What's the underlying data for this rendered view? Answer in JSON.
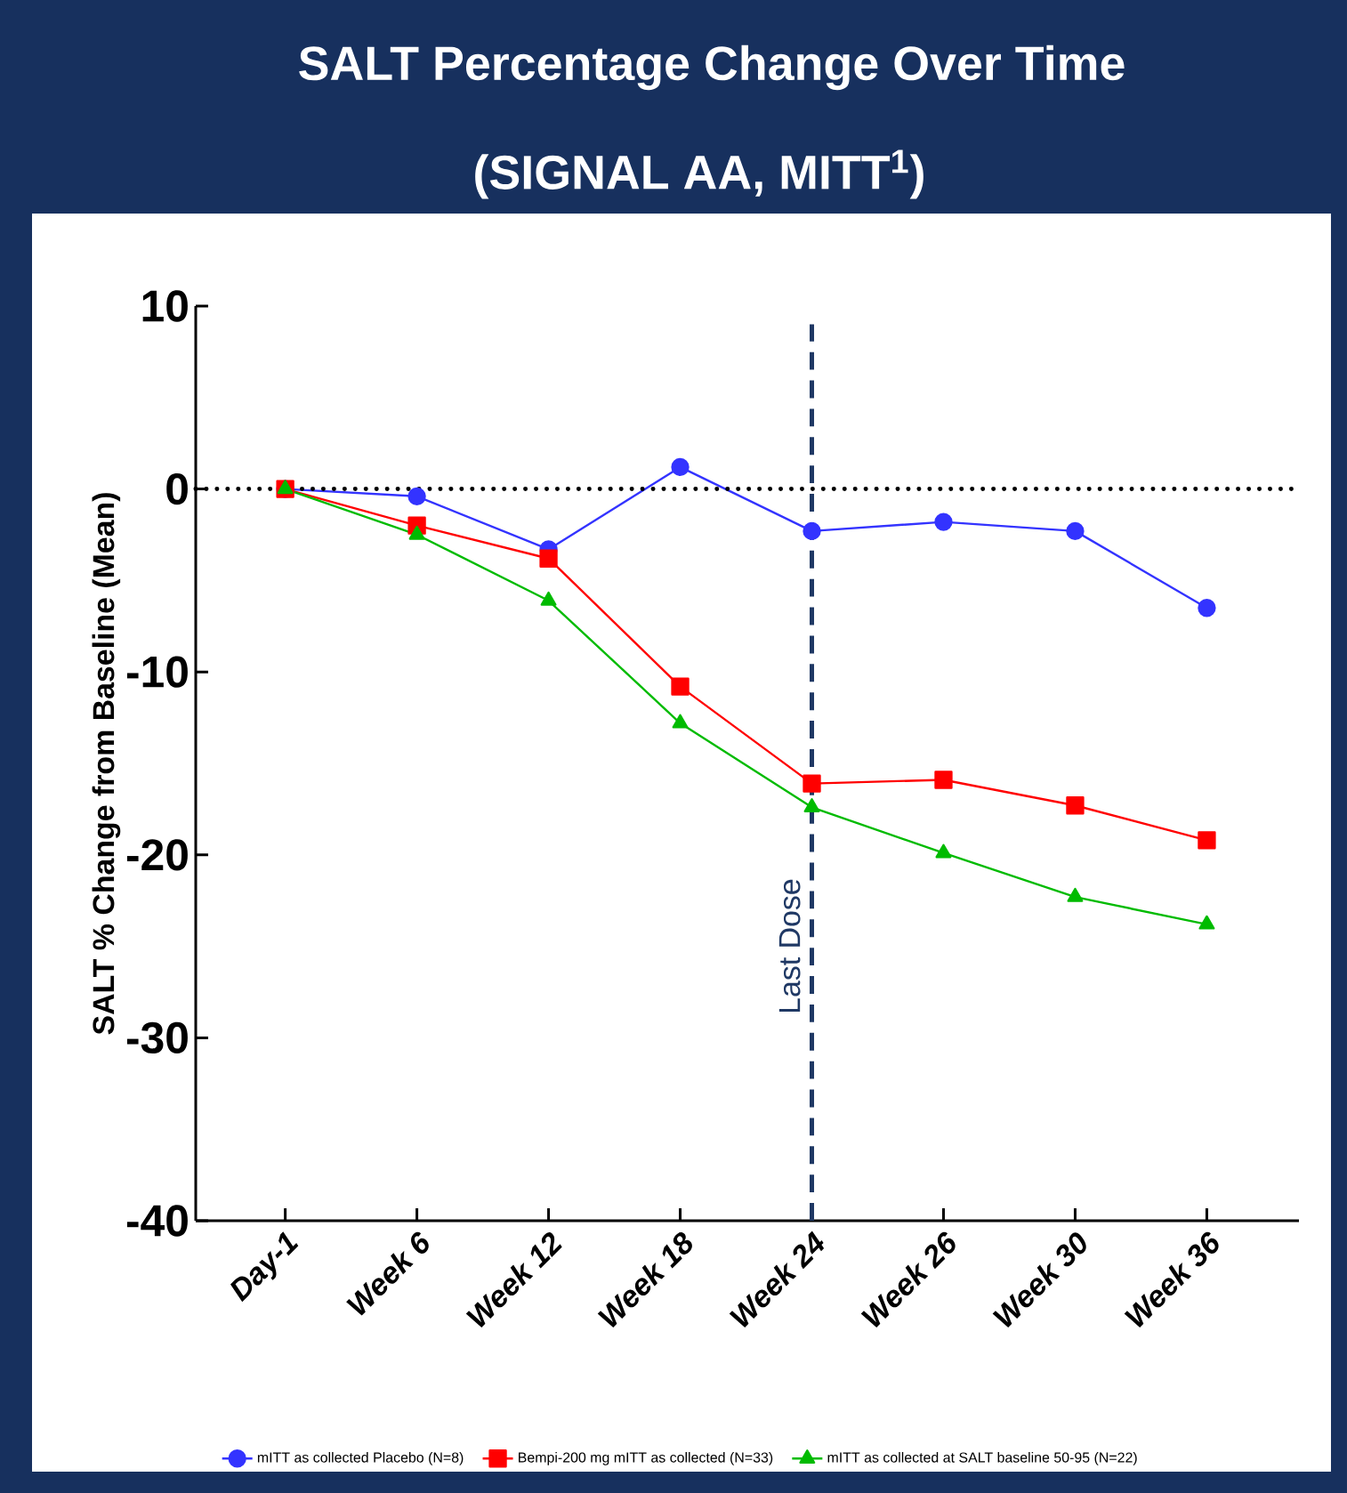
{
  "chart_data": {
    "type": "line",
    "title": "SALT Percentage Change Over Time",
    "subtitle": "(SIGNAL AA, MITT$^{1}$)",
    "ylabel": "SALT % Change from Baseline (Mean)",
    "categories": [
      "Day-1",
      "Week 6",
      "Week 12",
      "Week 18",
      "Week 24",
      "Week 26",
      "Week 30",
      "Week 36"
    ],
    "series": [
      {
        "name": "mITT as collected Placebo  (N=8)",
        "color": "#3333ff",
        "marker": "circle",
        "values": [
          0,
          -0.4,
          -3.3,
          1.2,
          -2.3,
          -1.8,
          -2.3,
          -6.5
        ]
      },
      {
        "name": "Bempi-200 mg mITT as collected (N=33)",
        "color": "#ff0000",
        "marker": "square",
        "values": [
          0,
          -2.0,
          -3.8,
          -10.8,
          -16.1,
          -15.9,
          -17.3,
          -19.2
        ]
      },
      {
        "name": "mITT as collected at SALT baseline 50-95  (N=22)",
        "color": "#00bb00",
        "marker": "triangle",
        "values": [
          0,
          -2.5,
          -6.1,
          -12.8,
          -17.4,
          -19.9,
          -22.3,
          -23.8
        ]
      }
    ],
    "ylim": [
      -40,
      10
    ],
    "yticks": [
      -40,
      -30,
      -20,
      -10,
      0,
      10
    ],
    "ref_lines": [
      {
        "axis": "y",
        "value": 0,
        "color": "#000000",
        "line_style": "dotted"
      },
      {
        "axis": "x",
        "value": "Week 24",
        "label": "Last Dose",
        "color": "#1f3864",
        "line_style": "dashed"
      }
    ],
    "line_style": "solid",
    "legend": "bottom"
  }
}
